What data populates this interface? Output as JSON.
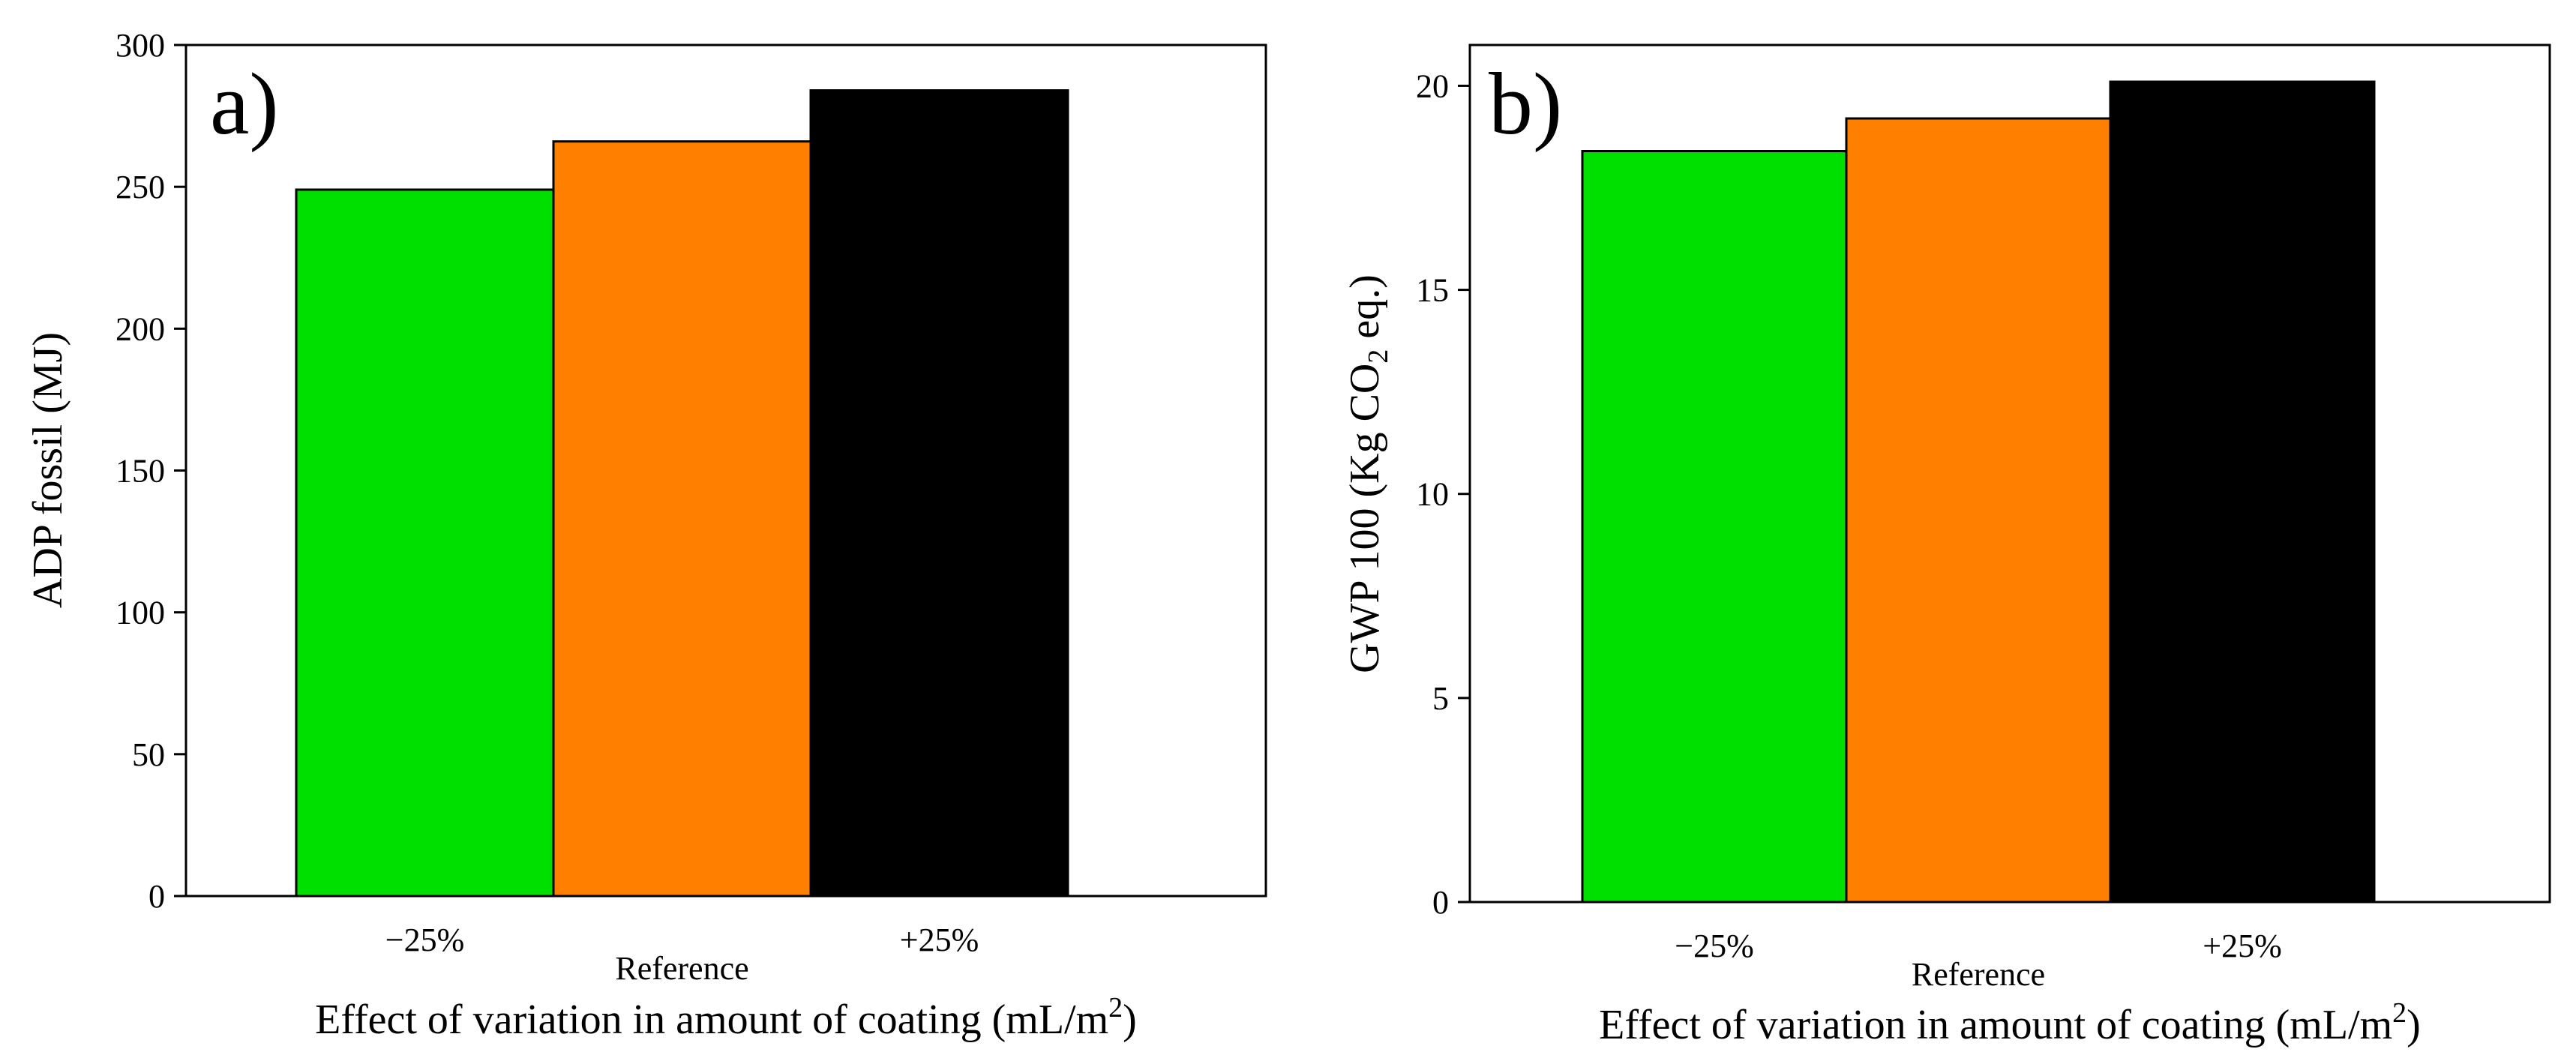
{
  "chart_data": [
    {
      "type": "bar",
      "panel_label": "a)",
      "title": "",
      "categories": [
        "−25%",
        "Reference",
        "+25%"
      ],
      "values": [
        249,
        266,
        284
      ],
      "colors": [
        "#00e000",
        "#ff7f00",
        "#000000"
      ],
      "xlabel": "Effect of variation in amount of coating (mL/m",
      "xlabel_sup": "2",
      "xlabel_end": ")",
      "ylabel": "ADP fossil (MJ)",
      "ylim": [
        0,
        300
      ],
      "yticks": [
        "0",
        "50",
        "100",
        "150",
        "200",
        "250",
        "300"
      ],
      "ytick_values": [
        0,
        50,
        100,
        150,
        200,
        250,
        300
      ]
    },
    {
      "type": "bar",
      "panel_label": "b)",
      "title": "",
      "categories": [
        "−25%",
        "Reference",
        "+25%"
      ],
      "values": [
        18.4,
        19.2,
        20.1
      ],
      "colors": [
        "#00e000",
        "#ff7f00",
        "#000000"
      ],
      "xlabel": "Effect of variation in amount of coating (mL/m",
      "xlabel_sup": "2",
      "xlabel_end": ")",
      "ylabel": "GWP 100 (Kg CO",
      "ylabel_sub": "2",
      "ylabel_end": " eq.)",
      "ylim": [
        0,
        21
      ],
      "yticks": [
        "0",
        "5",
        "10",
        "15",
        "20"
      ],
      "ytick_values": [
        0,
        5,
        10,
        15,
        20
      ]
    }
  ]
}
